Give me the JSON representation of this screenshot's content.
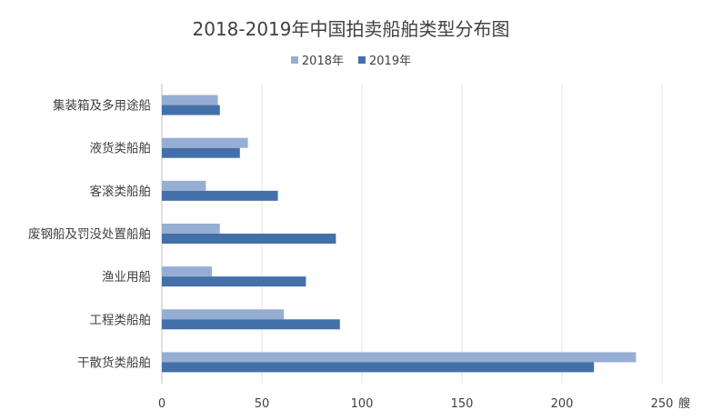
{
  "chart_data": {
    "type": "bar",
    "orientation": "horizontal",
    "title": "2018-2019年中国拍卖船舶类型分布图",
    "categories": [
      "集装箱及多用途船",
      "液货类船舶",
      "客滚类船舶",
      "废钢船及罚没处置船舶",
      "渔业用船",
      "工程类船舶",
      "干散货类船舶"
    ],
    "series": [
      {
        "name": "2018年",
        "color": "#97aed4",
        "values": [
          28,
          43,
          22,
          29,
          25,
          61,
          237
        ]
      },
      {
        "name": "2019年",
        "color": "#4470aa",
        "values": [
          29,
          39,
          58,
          87,
          72,
          89,
          216
        ]
      }
    ],
    "xlim": [
      0,
      250
    ],
    "xticks": [
      "0",
      "50",
      "100",
      "150",
      "200",
      "250"
    ],
    "xunit": "艘",
    "grid": "vertical",
    "legend_position": "top-center"
  }
}
